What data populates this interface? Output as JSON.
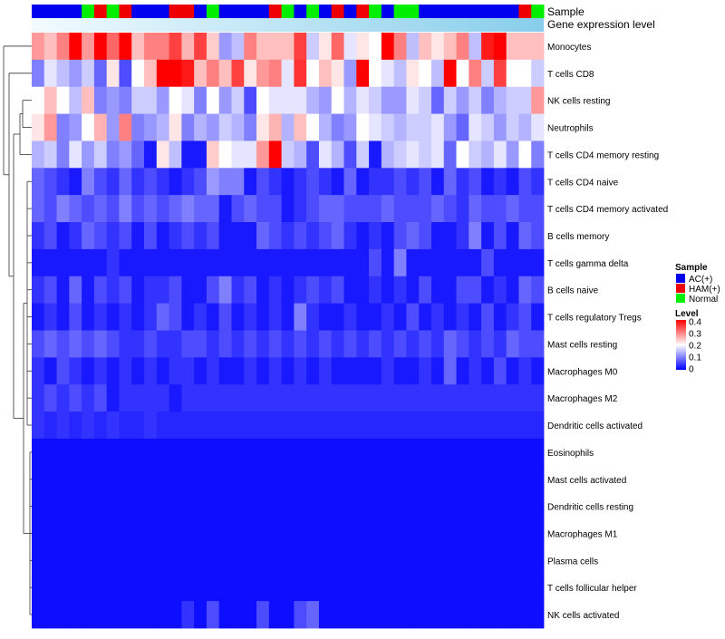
{
  "chart_data": {
    "type": "heatmap",
    "annotation_labels": {
      "sample": "Sample",
      "expression": "Gene expression level"
    },
    "columns": 41,
    "sample_groups": [
      "AC",
      "AC",
      "AC",
      "AC",
      "Normal",
      "HAM",
      "Normal",
      "HAM",
      "AC",
      "AC",
      "AC",
      "HAM",
      "HAM",
      "AC",
      "Normal",
      "AC",
      "AC",
      "AC",
      "AC",
      "HAM",
      "Normal",
      "AC",
      "Normal",
      "AC",
      "HAM",
      "AC",
      "HAM",
      "Normal",
      "AC",
      "Normal",
      "Normal",
      "AC",
      "AC",
      "AC",
      "AC",
      "AC",
      "AC",
      "AC",
      "AC",
      "HAM",
      "Normal"
    ],
    "rows": [
      {
        "label": "Monocytes",
        "values": [
          0.28,
          0.25,
          0.3,
          0.4,
          0.28,
          0.4,
          0.32,
          0.4,
          0.25,
          0.3,
          0.3,
          0.35,
          0.26,
          0.35,
          0.24,
          0.12,
          0.15,
          0.3,
          0.25,
          0.25,
          0.25,
          0.35,
          0.16,
          0.22,
          0.32,
          0.18,
          0.22,
          0.2,
          0.4,
          0.3,
          0.15,
          0.25,
          0.22,
          0.25,
          0.3,
          0.15,
          0.38,
          0.4,
          0.25,
          0.25,
          0.25
        ]
      },
      {
        "label": "T cells CD8",
        "values": [
          0.1,
          0.18,
          0.15,
          0.12,
          0.16,
          0.08,
          0.22,
          0.06,
          0.2,
          0.25,
          0.4,
          0.4,
          0.38,
          0.25,
          0.3,
          0.25,
          0.35,
          0.22,
          0.28,
          0.3,
          0.18,
          0.36,
          0.2,
          0.25,
          0.22,
          0.12,
          0.42,
          0.2,
          0.18,
          0.15,
          0.22,
          0.2,
          0.15,
          0.4,
          0.2,
          0.3,
          0.16,
          0.35,
          0.2,
          0.2,
          0.16
        ]
      },
      {
        "label": "NK cells resting",
        "values": [
          0.2,
          0.25,
          0.2,
          0.15,
          0.25,
          0.1,
          0.12,
          0.1,
          0.16,
          0.16,
          0.12,
          0.2,
          0.18,
          0.1,
          0.2,
          0.12,
          0.16,
          0.06,
          0.2,
          0.18,
          0.18,
          0.18,
          0.14,
          0.12,
          0.2,
          0.14,
          0.18,
          0.16,
          0.12,
          0.12,
          0.18,
          0.16,
          0.08,
          0.16,
          0.12,
          0.16,
          0.1,
          0.14,
          0.16,
          0.16,
          0.28
        ]
      },
      {
        "label": "Neutrophils",
        "values": [
          0.22,
          0.28,
          0.1,
          0.12,
          0.2,
          0.26,
          0.12,
          0.3,
          0.1,
          0.12,
          0.14,
          0.22,
          0.1,
          0.14,
          0.12,
          0.16,
          0.14,
          0.1,
          0.22,
          0.26,
          0.14,
          0.25,
          0.2,
          0.14,
          0.1,
          0.12,
          0.2,
          0.18,
          0.16,
          0.14,
          0.16,
          0.16,
          0.18,
          0.12,
          0.08,
          0.18,
          0.16,
          0.12,
          0.16,
          0.14,
          0.18
        ]
      },
      {
        "label": "T cells CD4 memory resting",
        "values": [
          0.14,
          0.16,
          0.1,
          0.18,
          0.12,
          0.16,
          0.1,
          0.12,
          0.08,
          0.02,
          0.22,
          0.15,
          0.02,
          0.02,
          0.24,
          0.2,
          0.18,
          0.18,
          0.28,
          0.4,
          0.16,
          0.14,
          0.06,
          0.18,
          0.14,
          0.06,
          0.16,
          0.02,
          0.14,
          0.16,
          0.18,
          0.16,
          0.18,
          0.08,
          0.2,
          0.16,
          0.14,
          0.18,
          0.12,
          0.2,
          0.1
        ]
      },
      {
        "label": "T cells CD4 naive",
        "values": [
          0.08,
          0.06,
          0.04,
          0.02,
          0.1,
          0.06,
          0.04,
          0.08,
          0.04,
          0.06,
          0.04,
          0.02,
          0.04,
          0.06,
          0.12,
          0.1,
          0.1,
          0.02,
          0.06,
          0.04,
          0.02,
          0.04,
          0.06,
          0.04,
          0.02,
          0.08,
          0.02,
          0.04,
          0.04,
          0.06,
          0.04,
          0.06,
          0.02,
          0.08,
          0.04,
          0.06,
          0.02,
          0.04,
          0.02,
          0.06,
          0.04
        ]
      },
      {
        "label": "T cells CD4 memory activated",
        "values": [
          0.08,
          0.06,
          0.1,
          0.08,
          0.06,
          0.08,
          0.06,
          0.1,
          0.06,
          0.08,
          0.06,
          0.08,
          0.1,
          0.08,
          0.08,
          0.02,
          0.06,
          0.08,
          0.06,
          0.06,
          0.02,
          0.04,
          0.06,
          0.08,
          0.08,
          0.06,
          0.06,
          0.06,
          0.08,
          0.06,
          0.06,
          0.06,
          0.08,
          0.06,
          0.04,
          0.08,
          0.06,
          0.06,
          0.08,
          0.06,
          0.06
        ]
      },
      {
        "label": "B cells memory",
        "values": [
          0.04,
          0.06,
          0.02,
          0.04,
          0.08,
          0.06,
          0.04,
          0.06,
          0.02,
          0.06,
          0.02,
          0.04,
          0.06,
          0.04,
          0.06,
          0.02,
          0.02,
          0.02,
          0.08,
          0.06,
          0.04,
          0.06,
          0.04,
          0.06,
          0.08,
          0.04,
          0.02,
          0.04,
          0.02,
          0.06,
          0.08,
          0.06,
          0.02,
          0.02,
          0.04,
          0.1,
          0.02,
          0.06,
          0.02,
          0.08,
          0.06
        ]
      },
      {
        "label": "T cells gamma delta",
        "values": [
          0.02,
          0.02,
          0.02,
          0.02,
          0.02,
          0.02,
          0.04,
          0.02,
          0.02,
          0.02,
          0.02,
          0.02,
          0.02,
          0.02,
          0.02,
          0.02,
          0.02,
          0.02,
          0.02,
          0.02,
          0.02,
          0.02,
          0.02,
          0.02,
          0.02,
          0.02,
          0.02,
          0.06,
          0.02,
          0.1,
          0.02,
          0.02,
          0.02,
          0.02,
          0.02,
          0.02,
          0.06,
          0.02,
          0.02,
          0.02,
          0.02
        ]
      },
      {
        "label": "B cells naive",
        "values": [
          0.04,
          0.06,
          0.02,
          0.08,
          0.02,
          0.06,
          0.04,
          0.06,
          0.02,
          0.04,
          0.04,
          0.06,
          0.02,
          0.02,
          0.06,
          0.1,
          0.04,
          0.06,
          0.02,
          0.04,
          0.02,
          0.04,
          0.06,
          0.04,
          0.06,
          0.02,
          0.02,
          0.04,
          0.02,
          0.04,
          0.02,
          0.06,
          0.02,
          0.02,
          0.06,
          0.06,
          0.02,
          0.04,
          0.02,
          0.08,
          0.06
        ]
      },
      {
        "label": "T cells regulatory  Tregs",
        "values": [
          0.02,
          0.04,
          0.02,
          0.06,
          0.02,
          0.04,
          0.02,
          0.04,
          0.02,
          0.04,
          0.08,
          0.06,
          0.02,
          0.04,
          0.02,
          0.06,
          0.02,
          0.04,
          0.02,
          0.04,
          0.02,
          0.1,
          0.04,
          0.02,
          0.02,
          0.04,
          0.02,
          0.02,
          0.04,
          0.02,
          0.06,
          0.02,
          0.04,
          0.02,
          0.04,
          0.02,
          0.06,
          0.02,
          0.04,
          0.06,
          0.02
        ]
      },
      {
        "label": "Mast cells resting",
        "values": [
          0.06,
          0.08,
          0.06,
          0.08,
          0.06,
          0.08,
          0.06,
          0.04,
          0.04,
          0.06,
          0.04,
          0.04,
          0.06,
          0.06,
          0.04,
          0.06,
          0.04,
          0.06,
          0.04,
          0.06,
          0.04,
          0.06,
          0.04,
          0.06,
          0.04,
          0.06,
          0.04,
          0.06,
          0.04,
          0.06,
          0.04,
          0.06,
          0.04,
          0.08,
          0.06,
          0.04,
          0.06,
          0.04,
          0.08,
          0.06,
          0.06
        ]
      },
      {
        "label": "Macrophages M0",
        "values": [
          0.04,
          0.02,
          0.06,
          0.04,
          0.02,
          0.04,
          0.02,
          0.04,
          0.02,
          0.04,
          0.02,
          0.04,
          0.04,
          0.02,
          0.04,
          0.02,
          0.02,
          0.04,
          0.02,
          0.04,
          0.02,
          0.04,
          0.02,
          0.04,
          0.02,
          0.02,
          0.02,
          0.02,
          0.04,
          0.02,
          0.02,
          0.04,
          0.02,
          0.08,
          0.02,
          0.04,
          0.02,
          0.06,
          0.02,
          0.04,
          0.02
        ]
      },
      {
        "label": "Macrophages M2",
        "values": [
          0.04,
          0.06,
          0.04,
          0.06,
          0.04,
          0.06,
          0.02,
          0.04,
          0.04,
          0.04,
          0.04,
          0.02,
          0.04,
          0.04,
          0.04,
          0.04,
          0.04,
          0.04,
          0.04,
          0.04,
          0.04,
          0.04,
          0.04,
          0.04,
          0.04,
          0.04,
          0.04,
          0.04,
          0.04,
          0.04,
          0.04,
          0.04,
          0.04,
          0.04,
          0.04,
          0.04,
          0.04,
          0.04,
          0.04,
          0.04,
          0.04
        ]
      },
      {
        "label": "Dendritic cells activated",
        "values": [
          0.04,
          0.03,
          0.04,
          0.03,
          0.04,
          0.03,
          0.04,
          0.03,
          0.03,
          0.04,
          0.03,
          0.03,
          0.03,
          0.03,
          0.03,
          0.03,
          0.03,
          0.03,
          0.03,
          0.03,
          0.03,
          0.03,
          0.03,
          0.03,
          0.03,
          0.03,
          0.03,
          0.03,
          0.03,
          0.03,
          0.03,
          0.03,
          0.03,
          0.03,
          0.03,
          0.03,
          0.03,
          0.03,
          0.03,
          0.03,
          0.03
        ]
      },
      {
        "label": "Eosinophils",
        "values": [
          0.01,
          0.01,
          0.01,
          0.01,
          0.01,
          0.01,
          0.01,
          0.01,
          0.01,
          0.01,
          0.01,
          0.01,
          0.01,
          0.01,
          0.01,
          0.01,
          0.01,
          0.01,
          0.01,
          0.01,
          0.01,
          0.01,
          0.01,
          0.01,
          0.01,
          0.01,
          0.01,
          0.01,
          0.01,
          0.01,
          0.01,
          0.01,
          0.01,
          0.01,
          0.01,
          0.01,
          0.01,
          0.01,
          0.01,
          0.01,
          0.01
        ]
      },
      {
        "label": "Mast cells activated",
        "values": [
          0.01,
          0.01,
          0.01,
          0.01,
          0.01,
          0.01,
          0.01,
          0.01,
          0.01,
          0.01,
          0.01,
          0.01,
          0.01,
          0.01,
          0.01,
          0.01,
          0.01,
          0.01,
          0.01,
          0.01,
          0.01,
          0.01,
          0.01,
          0.01,
          0.01,
          0.01,
          0.01,
          0.01,
          0.01,
          0.01,
          0.01,
          0.01,
          0.01,
          0.01,
          0.01,
          0.01,
          0.01,
          0.01,
          0.01,
          0.01,
          0.01
        ]
      },
      {
        "label": "Dendritic cells resting",
        "values": [
          0.01,
          0.01,
          0.01,
          0.01,
          0.01,
          0.01,
          0.01,
          0.01,
          0.01,
          0.01,
          0.01,
          0.01,
          0.01,
          0.01,
          0.01,
          0.01,
          0.01,
          0.01,
          0.01,
          0.01,
          0.01,
          0.01,
          0.01,
          0.01,
          0.01,
          0.01,
          0.01,
          0.01,
          0.01,
          0.01,
          0.01,
          0.01,
          0.01,
          0.01,
          0.01,
          0.01,
          0.01,
          0.01,
          0.01,
          0.01,
          0.01
        ]
      },
      {
        "label": "Macrophages M1",
        "values": [
          0.01,
          0.01,
          0.01,
          0.01,
          0.01,
          0.01,
          0.01,
          0.01,
          0.01,
          0.01,
          0.01,
          0.01,
          0.01,
          0.01,
          0.01,
          0.01,
          0.01,
          0.01,
          0.01,
          0.01,
          0.01,
          0.01,
          0.01,
          0.01,
          0.01,
          0.01,
          0.01,
          0.01,
          0.01,
          0.01,
          0.01,
          0.01,
          0.01,
          0.01,
          0.01,
          0.01,
          0.01,
          0.01,
          0.01,
          0.01,
          0.01
        ]
      },
      {
        "label": "Plasma cells",
        "values": [
          0.01,
          0.01,
          0.01,
          0.01,
          0.01,
          0.01,
          0.01,
          0.01,
          0.01,
          0.01,
          0.01,
          0.01,
          0.01,
          0.01,
          0.01,
          0.01,
          0.01,
          0.01,
          0.01,
          0.01,
          0.01,
          0.01,
          0.01,
          0.01,
          0.01,
          0.01,
          0.01,
          0.01,
          0.01,
          0.01,
          0.01,
          0.01,
          0.01,
          0.01,
          0.01,
          0.01,
          0.01,
          0.01,
          0.01,
          0.01,
          0.01
        ]
      },
      {
        "label": "T cells follicular helper",
        "values": [
          0.01,
          0.01,
          0.01,
          0.01,
          0.01,
          0.01,
          0.01,
          0.01,
          0.01,
          0.01,
          0.01,
          0.01,
          0.01,
          0.01,
          0.01,
          0.01,
          0.01,
          0.01,
          0.01,
          0.01,
          0.01,
          0.01,
          0.01,
          0.01,
          0.01,
          0.01,
          0.01,
          0.01,
          0.01,
          0.01,
          0.01,
          0.01,
          0.01,
          0.01,
          0.01,
          0.01,
          0.01,
          0.01,
          0.01,
          0.01,
          0.01
        ]
      },
      {
        "label": "NK cells activated",
        "values": [
          0.01,
          0.01,
          0.01,
          0.01,
          0.01,
          0.01,
          0.01,
          0.01,
          0.01,
          0.01,
          0.01,
          0.01,
          0.04,
          0.01,
          0.06,
          0.01,
          0.01,
          0.01,
          0.06,
          0.01,
          0.01,
          0.06,
          0.08,
          0.01,
          0.01,
          0.01,
          0.01,
          0.01,
          0.01,
          0.01,
          0.01,
          0.01,
          0.01,
          0.01,
          0.01,
          0.01,
          0.01,
          0.01,
          0.01,
          0.01,
          0.01
        ]
      }
    ],
    "legend_sample": {
      "title": "Sample",
      "entries": [
        {
          "key": "AC",
          "label": "AC(+)",
          "color": "#0000ee"
        },
        {
          "key": "HAM",
          "label": "HAM(+)",
          "color": "#ee0000"
        },
        {
          "key": "Normal",
          "label": "Normal",
          "color": "#00ee00"
        }
      ]
    },
    "legend_level": {
      "title": "Level",
      "ticks": [
        "0.4",
        "0.3",
        "0.2",
        "0.1",
        "0"
      ],
      "range": [
        0,
        0.4
      ],
      "colors": [
        "#0000ff",
        "#ffffff",
        "#ff0000"
      ]
    },
    "expression_bar_color": "#87ceeb"
  }
}
